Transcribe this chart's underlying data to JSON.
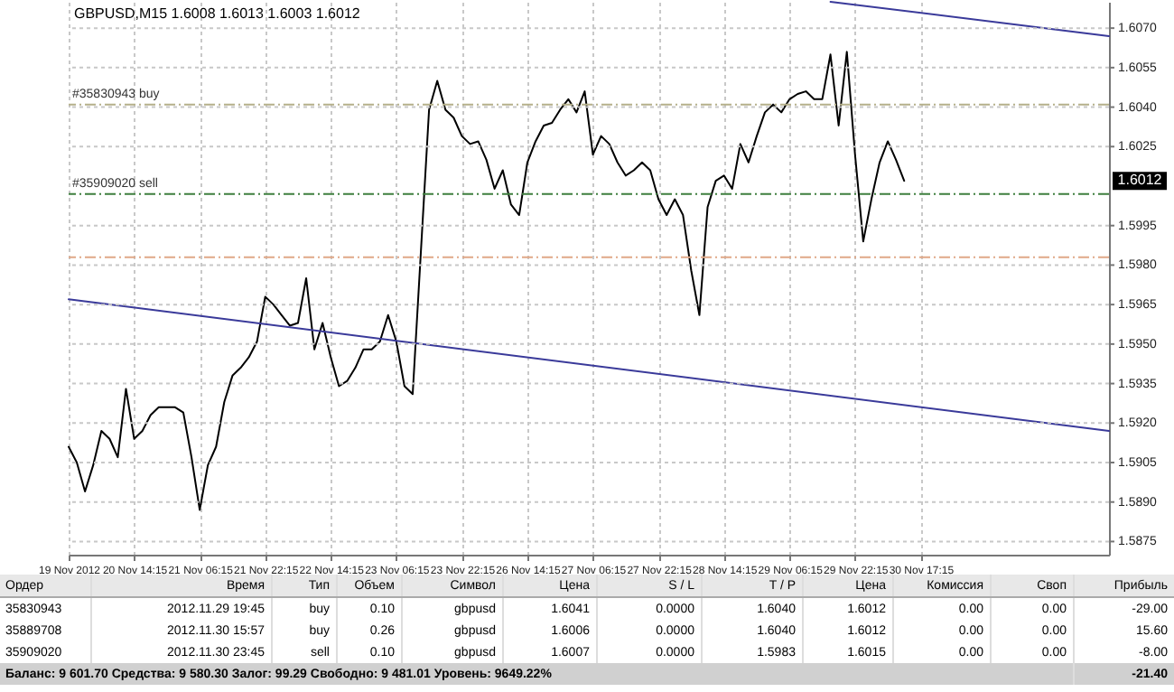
{
  "chart_data": {
    "type": "line",
    "title": "GBPUSD,M15  1.6008 1.6013 1.6003 1.6012",
    "categories": [
      "19 Nov 2012",
      null,
      null,
      null,
      null,
      null,
      null,
      null,
      "20 Nov 14:15",
      null,
      null,
      null,
      null,
      null,
      null,
      null,
      "21 Nov 06:15",
      null,
      null,
      null,
      null,
      null,
      null,
      null,
      "21 Nov 22:15",
      null,
      null,
      null,
      null,
      null,
      null,
      null,
      "22 Nov 14:15",
      null,
      null,
      null,
      null,
      null,
      null,
      null,
      "23 Nov 06:15",
      null,
      null,
      null,
      null,
      null,
      null,
      null,
      "23 Nov 22:15",
      null,
      null,
      null,
      null,
      null,
      null,
      null,
      "26 Nov 14:15",
      null,
      null,
      null,
      null,
      null,
      null,
      null,
      "27 Nov 06:15",
      null,
      null,
      null,
      null,
      null,
      null,
      null,
      "27 Nov 22:15",
      null,
      null,
      null,
      null,
      null,
      null,
      null,
      "28 Nov 14:15",
      null,
      null,
      null,
      null,
      null,
      null,
      null,
      "29 Nov 06:15",
      null,
      null,
      null,
      null,
      null,
      null,
      null,
      "29 Nov 22:15",
      null,
      null,
      null,
      null,
      null,
      null,
      null,
      "30 Nov 17:15",
      null,
      null,
      null,
      null,
      null,
      null,
      null,
      null,
      null,
      null,
      null,
      null,
      null,
      null,
      null,
      null,
      null,
      null,
      null,
      null,
      null,
      null,
      null
    ],
    "series": [
      {
        "color": "#000000",
        "values": [
          1.5911,
          1.5905,
          1.5894,
          1.5904,
          1.5917,
          1.5914,
          1.5907,
          1.5933,
          1.5914,
          1.5917,
          1.5923,
          1.5926,
          1.5926,
          1.5926,
          1.5924,
          1.5907,
          1.5887,
          1.5904,
          1.5911,
          1.5928,
          1.5938,
          1.5941,
          1.5945,
          1.5951,
          1.5968,
          1.5965,
          1.5961,
          1.5957,
          1.5958,
          1.5975,
          1.5948,
          1.5958,
          1.5945,
          1.5934,
          1.5936,
          1.5941,
          1.5948,
          1.5948,
          1.5951,
          1.5961,
          1.5951,
          1.5934,
          1.5931,
          1.5985,
          1.6039,
          1.605,
          1.6039,
          1.6036,
          1.6029,
          1.6026,
          1.6027,
          1.602,
          1.6009,
          1.6016,
          1.6003,
          1.5999,
          1.6019,
          1.6027,
          1.6033,
          1.6034,
          1.6039,
          1.6043,
          1.6038,
          1.6046,
          1.6022,
          1.6029,
          1.6026,
          1.6019,
          1.6014,
          1.6016,
          1.6019,
          1.6016,
          1.6005,
          1.5999,
          1.6005,
          1.5999,
          1.5978,
          1.5961,
          1.6002,
          1.6012,
          1.6014,
          1.6009,
          1.6026,
          1.6019,
          1.6029,
          1.6038,
          1.6041,
          1.6038,
          1.6043,
          1.6045,
          1.6046,
          1.6043,
          1.6043,
          1.606,
          1.6033,
          1.6061,
          1.6022,
          1.5989,
          1.6005,
          1.6019,
          1.6027,
          1.602,
          1.6012,
          null,
          null,
          null,
          null,
          null,
          null,
          null,
          null,
          null,
          null,
          null,
          null,
          null,
          null,
          null,
          null,
          null,
          null,
          null,
          null,
          null,
          null,
          null,
          null,
          null
        ]
      },
      {
        "color": "#3a3a9a",
        "values": [
          1.5967,
          null,
          null,
          null,
          null,
          null,
          null,
          null,
          null,
          null,
          null,
          null,
          null,
          null,
          null,
          null,
          null,
          null,
          null,
          null,
          null,
          null,
          null,
          null,
          null,
          null,
          null,
          null,
          null,
          null,
          null,
          null,
          null,
          null,
          null,
          null,
          null,
          null,
          null,
          null,
          null,
          null,
          null,
          null,
          null,
          null,
          null,
          null,
          null,
          null,
          null,
          null,
          null,
          null,
          null,
          null,
          null,
          null,
          null,
          null,
          null,
          null,
          null,
          null,
          null,
          null,
          null,
          null,
          null,
          null,
          null,
          null,
          null,
          null,
          null,
          null,
          null,
          null,
          null,
          null,
          null,
          null,
          null,
          null,
          null,
          null,
          null,
          null,
          null,
          null,
          null,
          null,
          null,
          null,
          null,
          null,
          null,
          null,
          null,
          null,
          null,
          null,
          null,
          null,
          null,
          null,
          null,
          null,
          null,
          null,
          null,
          null,
          null,
          null,
          null,
          null,
          null,
          null,
          null,
          null,
          null,
          null,
          null,
          null,
          null,
          null,
          null,
          1.5917
        ]
      },
      {
        "color": "#3a3a9a",
        "values": [
          null,
          null,
          null,
          null,
          null,
          null,
          null,
          null,
          null,
          null,
          null,
          null,
          null,
          null,
          null,
          null,
          null,
          null,
          null,
          null,
          null,
          null,
          null,
          null,
          null,
          null,
          null,
          null,
          null,
          null,
          null,
          null,
          null,
          null,
          null,
          null,
          null,
          null,
          null,
          null,
          null,
          null,
          null,
          null,
          null,
          null,
          null,
          null,
          null,
          null,
          null,
          null,
          null,
          null,
          null,
          null,
          null,
          null,
          null,
          null,
          null,
          null,
          null,
          null,
          null,
          null,
          null,
          null,
          null,
          null,
          null,
          null,
          null,
          null,
          null,
          null,
          null,
          null,
          null,
          null,
          null,
          null,
          null,
          null,
          null,
          null,
          null,
          null,
          null,
          null,
          null,
          null,
          null,
          1.608,
          null,
          null,
          null,
          null,
          null,
          null,
          null,
          null,
          null,
          null,
          null,
          null,
          null,
          null,
          null,
          null,
          null,
          null,
          null,
          null,
          null,
          null,
          null,
          null,
          null,
          null,
          null,
          null,
          null,
          null,
          null,
          null,
          null,
          1.6067
        ]
      }
    ],
    "ylim": [
      1.587,
      1.608
    ],
    "yticks": [
      1.5875,
      {
        "value": 1.589,
        "label": "1.5890"
      },
      1.5905,
      {
        "value": 1.592,
        "label": "1.5920"
      },
      1.5935,
      {
        "value": 1.595,
        "label": "1.5950"
      },
      1.5965,
      {
        "value": 1.598,
        "label": "1.5980"
      },
      1.5995,
      1.6025,
      {
        "value": 1.604,
        "label": "1.6040"
      },
      1.6055,
      {
        "value": 1.607,
        "label": "1.6070"
      }
    ],
    "grid": true,
    "ref_lines": [
      {
        "axis": "y",
        "value": 1.6041,
        "label": "#35830943 buy",
        "color": "#b5b08a",
        "line_style": "dashdot"
      },
      {
        "axis": "y",
        "value": 1.6007,
        "label": "#35909020 sell",
        "color": "#3f7f3f",
        "line_style": "dashdot"
      },
      {
        "axis": "y",
        "value": 1.5983,
        "color": "#e0a888",
        "line_style": "dashdot"
      }
    ],
    "annotations": [
      {
        "text": "1.6012",
        "y": 1.6012
      },
      "Ордер",
      "Время",
      "Тип",
      "Объем",
      "Символ",
      "Цена",
      "S / L",
      "T / P",
      "Цена",
      "Комиссия",
      "Своп",
      "Прибыль",
      "35830943",
      "2012.11.29 19:45",
      "buy",
      "0.10",
      "gbpusd",
      "1.6041",
      "0.0000",
      "1.6040",
      "1.6012",
      "0.00",
      "0.00",
      "-29.00",
      "35889708",
      "2012.11.30 15:57",
      "buy",
      "0.26",
      "gbpusd",
      "1.6006",
      "0.0000",
      "1.6040",
      "1.6012",
      "0.00",
      "0.00",
      "15.60",
      "35909020",
      "2012.11.30 23:45",
      "sell",
      "0.10",
      "gbpusd",
      "1.6007",
      "0.0000",
      "1.5983",
      "1.6015",
      "0.00",
      "0.00",
      "-8.00",
      "Баланс: 9 601.70  Средства: 9 580.30  Залог: 99.29  Свободно: 9 481.01  Уровень: 9649.22%",
      "-21.40"
    ]
  }
}
